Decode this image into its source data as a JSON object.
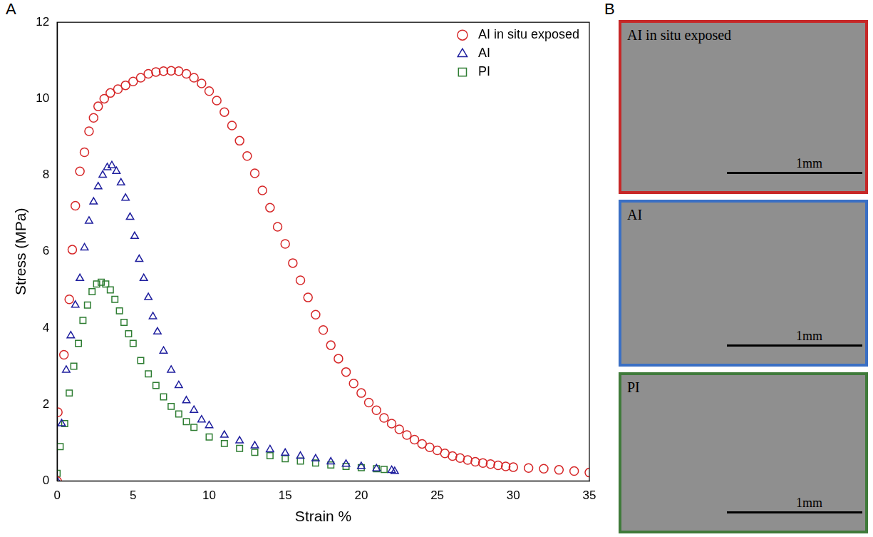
{
  "chart_data": {
    "type": "scatter",
    "panel": "A",
    "x_label": "Strain %",
    "y_label": "Stress (MPa)",
    "xlim": [
      0,
      35
    ],
    "xticks": [
      0,
      5,
      10,
      15,
      20,
      25,
      30,
      35
    ],
    "ylim": [
      0,
      12
    ],
    "yticks": [
      0,
      2,
      4,
      6,
      8,
      10,
      12
    ],
    "grid": false,
    "legend": "upper right",
    "series": [
      {
        "name": "AI in situ exposed",
        "color": "#d62728",
        "marker": "circle",
        "x": [
          0,
          0.05,
          0.45,
          0.8,
          1.0,
          1.2,
          1.5,
          1.8,
          2.1,
          2.4,
          2.7,
          3.1,
          3.5,
          4.0,
          4.5,
          5.0,
          5.5,
          6.0,
          6.5,
          7.0,
          7.5,
          8.0,
          8.5,
          9.0,
          9.5,
          10,
          10.5,
          11,
          11.5,
          12,
          12.5,
          13,
          13.5,
          14,
          14.5,
          15,
          15.5,
          16,
          16.5,
          17,
          17.5,
          18,
          18.5,
          19,
          19.5,
          20,
          20.5,
          21,
          21.5,
          22,
          22.5,
          23,
          23.5,
          24,
          24.5,
          25,
          25.5,
          26,
          26.5,
          27,
          27.5,
          28,
          28.5,
          29,
          29.5,
          30,
          31,
          32,
          33,
          34,
          35
        ],
        "values": [
          0,
          1.8,
          3.3,
          4.75,
          6.05,
          7.2,
          8.1,
          8.6,
          9.15,
          9.5,
          9.8,
          10.0,
          10.15,
          10.25,
          10.35,
          10.45,
          10.55,
          10.65,
          10.7,
          10.72,
          10.73,
          10.72,
          10.65,
          10.55,
          10.4,
          10.2,
          9.95,
          9.65,
          9.3,
          8.9,
          8.5,
          8.05,
          7.6,
          7.15,
          6.65,
          6.2,
          5.7,
          5.25,
          4.8,
          4.35,
          3.95,
          3.55,
          3.2,
          2.85,
          2.55,
          2.3,
          2.05,
          1.85,
          1.65,
          1.5,
          1.35,
          1.2,
          1.08,
          0.97,
          0.88,
          0.8,
          0.72,
          0.65,
          0.6,
          0.55,
          0.5,
          0.47,
          0.44,
          0.41,
          0.38,
          0.36,
          0.34,
          0.32,
          0.29,
          0.26,
          0.22
        ]
      },
      {
        "name": "AI",
        "color": "#1f1f9e",
        "marker": "triangle",
        "x": [
          0,
          0.3,
          0.6,
          0.9,
          1.2,
          1.5,
          1.8,
          2.1,
          2.4,
          2.7,
          3.0,
          3.3,
          3.6,
          3.9,
          4.2,
          4.5,
          4.8,
          5.1,
          5.4,
          5.7,
          6.0,
          6.3,
          6.6,
          7.0,
          7.5,
          8,
          8.5,
          9,
          9.5,
          10,
          11,
          12,
          13,
          14,
          15,
          16,
          17,
          18,
          19,
          20,
          21,
          22,
          22.2
        ],
        "values": [
          0,
          1.5,
          2.9,
          3.8,
          4.6,
          5.3,
          6.1,
          6.8,
          7.3,
          7.7,
          8.0,
          8.2,
          8.25,
          8.1,
          7.8,
          7.4,
          6.9,
          6.4,
          5.8,
          5.3,
          4.8,
          4.3,
          3.9,
          3.4,
          2.9,
          2.5,
          2.1,
          1.85,
          1.6,
          1.45,
          1.2,
          1.05,
          0.92,
          0.82,
          0.73,
          0.65,
          0.58,
          0.5,
          0.44,
          0.38,
          0.32,
          0.28,
          0.25
        ]
      },
      {
        "name": "PI",
        "color": "#2e7d32",
        "marker": "square",
        "x": [
          0,
          0.2,
          0.5,
          0.8,
          1.1,
          1.4,
          1.7,
          2.0,
          2.3,
          2.6,
          2.9,
          3.2,
          3.5,
          3.8,
          4.1,
          4.4,
          4.7,
          5.0,
          5.5,
          6,
          6.5,
          7,
          7.5,
          8,
          8.5,
          9,
          10,
          11,
          12,
          13,
          14,
          15,
          16,
          17,
          18,
          19,
          20,
          21,
          21.5
        ],
        "values": [
          0.2,
          0.9,
          1.5,
          2.3,
          3.0,
          3.6,
          4.2,
          4.6,
          4.95,
          5.15,
          5.2,
          5.15,
          5.0,
          4.75,
          4.45,
          4.15,
          3.85,
          3.6,
          3.15,
          2.8,
          2.5,
          2.2,
          1.95,
          1.75,
          1.55,
          1.4,
          1.15,
          0.98,
          0.85,
          0.75,
          0.66,
          0.58,
          0.52,
          0.47,
          0.42,
          0.38,
          0.35,
          0.32,
          0.3
        ]
      }
    ]
  },
  "images": {
    "panel": "B",
    "panels": [
      {
        "label": "AI in situ exposed",
        "color": "#c62828",
        "scale_bar": "1mm"
      },
      {
        "label": "AI",
        "color": "#3a6fc4",
        "scale_bar": "1mm"
      },
      {
        "label": "PI",
        "color": "#3f7a3a",
        "scale_bar": "1mm"
      }
    ]
  }
}
